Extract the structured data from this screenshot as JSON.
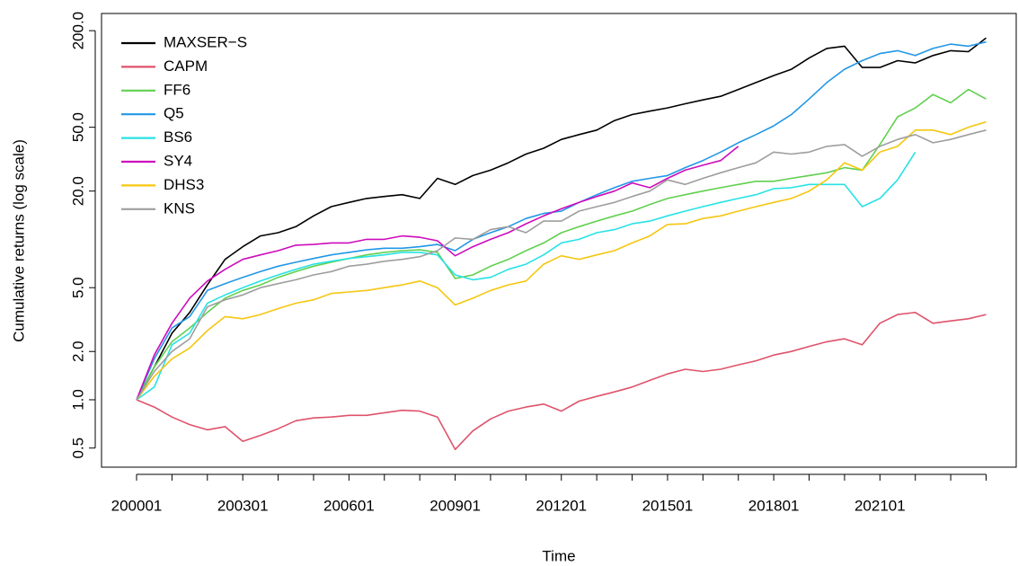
{
  "chart_data": {
    "type": "line",
    "xlabel": "Time",
    "ylabel": "Cumulative returns (log scale)",
    "ylog": true,
    "legend": "top-left",
    "xlim": [
      1999.01,
      2024.85
    ],
    "ylim": [
      0.38,
      256
    ],
    "xticks": [
      {
        "value": 2000,
        "label": "200001"
      },
      {
        "value": 2001,
        "label": null
      },
      {
        "value": 2002,
        "label": null
      },
      {
        "value": 2003,
        "label": "200301"
      },
      {
        "value": 2004,
        "label": null
      },
      {
        "value": 2005,
        "label": null
      },
      {
        "value": 2006,
        "label": "200601"
      },
      {
        "value": 2007,
        "label": null
      },
      {
        "value": 2008,
        "label": null
      },
      {
        "value": 2009,
        "label": "200901"
      },
      {
        "value": 2010,
        "label": null
      },
      {
        "value": 2011,
        "label": null
      },
      {
        "value": 2012,
        "label": "201201"
      },
      {
        "value": 2013,
        "label": null
      },
      {
        "value": 2014,
        "label": null
      },
      {
        "value": 2015,
        "label": "201501"
      },
      {
        "value": 2016,
        "label": null
      },
      {
        "value": 2017,
        "label": null
      },
      {
        "value": 2018,
        "label": "201801"
      },
      {
        "value": 2019,
        "label": null
      },
      {
        "value": 2020,
        "label": null
      },
      {
        "value": 2021,
        "label": "202101"
      },
      {
        "value": 2022,
        "label": null
      },
      {
        "value": 2023,
        "label": null
      },
      {
        "value": 2024,
        "label": null
      }
    ],
    "yticks": [
      0.5,
      {
        "value": 1,
        "label": "1.0"
      },
      {
        "value": 2,
        "label": "2.0"
      },
      {
        "value": 5,
        "label": "5.0"
      },
      {
        "value": 20,
        "label": "20.0"
      },
      {
        "value": 50,
        "label": "50.0"
      },
      {
        "value": 200,
        "label": "200.0"
      }
    ],
    "x": [
      2000,
      2000.5,
      2001,
      2001.5,
      2002,
      2002.5,
      2003,
      2003.5,
      2004,
      2004.5,
      2005,
      2005.5,
      2006,
      2006.5,
      2007,
      2007.5,
      2008,
      2008.5,
      2009,
      2009.5,
      2010,
      2010.5,
      2011,
      2011.5,
      2012,
      2012.5,
      2013,
      2013.5,
      2014,
      2014.5,
      2015,
      2015.5,
      2016,
      2016.5,
      2017,
      2017.5,
      2018,
      2018.5,
      2019,
      2019.5,
      2020,
      2020.5,
      2021,
      2021.5,
      2022,
      2022.5,
      2023,
      2023.5,
      2024
    ],
    "series": [
      {
        "name": "MAXSER−S",
        "color": "#000000",
        "values": [
          1.0,
          1.6,
          2.6,
          3.5,
          5.2,
          7.5,
          9,
          10.5,
          11,
          12,
          14,
          16,
          17,
          18,
          18.5,
          19,
          18,
          24,
          22,
          25,
          27,
          30,
          34,
          37,
          42,
          45,
          48,
          55,
          60,
          63,
          66,
          70,
          74,
          78,
          86,
          95,
          105,
          115,
          135,
          155,
          160,
          118,
          118,
          130,
          126,
          140,
          150,
          148,
          180
        ]
      },
      {
        "name": "CAPM",
        "color": "#df536b",
        "values": [
          1.0,
          0.9,
          0.78,
          0.7,
          0.65,
          0.68,
          0.55,
          0.6,
          0.66,
          0.74,
          0.77,
          0.78,
          0.8,
          0.8,
          0.83,
          0.86,
          0.85,
          0.78,
          0.49,
          0.64,
          0.76,
          0.85,
          0.9,
          0.94,
          0.85,
          0.98,
          1.05,
          1.12,
          1.2,
          1.32,
          1.45,
          1.55,
          1.5,
          1.55,
          1.65,
          1.75,
          1.9,
          2.0,
          2.15,
          2.3,
          2.4,
          2.2,
          3.0,
          3.4,
          3.5,
          3.0,
          3.1,
          3.2,
          3.4
        ]
      },
      {
        "name": "FF6",
        "color": "#61d04f",
        "values": [
          1,
          1.6,
          2.3,
          2.8,
          3.5,
          4.3,
          4.8,
          5.2,
          5.8,
          6.3,
          6.8,
          7.2,
          7.6,
          8.0,
          8.3,
          8.5,
          8.6,
          8.3,
          5.7,
          6.0,
          6.8,
          7.5,
          8.5,
          9.5,
          11,
          12,
          13,
          14,
          15,
          16.5,
          18,
          19,
          20,
          21,
          22,
          23,
          23,
          24,
          25,
          26,
          28,
          27,
          39,
          58,
          66,
          80,
          71,
          86,
          75
        ]
      },
      {
        "name": "Q5",
        "color": "#2297e6",
        "values": [
          1,
          1.8,
          2.8,
          3.3,
          4.8,
          5.3,
          5.8,
          6.3,
          6.8,
          7.2,
          7.6,
          8.0,
          8.3,
          8.6,
          8.8,
          8.8,
          9.0,
          9.3,
          8.5,
          10,
          11,
          12,
          13.5,
          14.5,
          15,
          17,
          19,
          21,
          23,
          24,
          25,
          28,
          31,
          35,
          40,
          45,
          51,
          60,
          75,
          95,
          115,
          130,
          144,
          150,
          140,
          155,
          165,
          160,
          170
        ]
      },
      {
        "name": "BS6",
        "color": "#28e2e5",
        "values": [
          1,
          1.2,
          2.2,
          2.6,
          4.0,
          4.5,
          5.0,
          5.5,
          6.0,
          6.5,
          7.0,
          7.3,
          7.6,
          7.8,
          8.0,
          8.3,
          8.3,
          8.0,
          6.0,
          5.6,
          5.8,
          6.5,
          7.0,
          8.0,
          9.5,
          10,
          11,
          11.5,
          12.5,
          13,
          14,
          15,
          16,
          17,
          18,
          19,
          20.7,
          21,
          22,
          22,
          22,
          16,
          18,
          23.5,
          35,
          null,
          null,
          null,
          null
        ]
      },
      {
        "name": "SY4",
        "color": "#cd0bbc",
        "values": [
          1,
          1.9,
          3,
          4.3,
          5.5,
          6.5,
          7.5,
          8.0,
          8.5,
          9.2,
          9.3,
          9.5,
          9.5,
          10,
          10,
          10.5,
          10.3,
          9.8,
          7.9,
          9.0,
          10,
          11,
          12.5,
          14,
          15.5,
          17,
          18.5,
          20,
          22.5,
          21,
          24,
          27,
          29,
          31,
          38,
          null,
          null,
          null,
          null,
          null,
          null,
          null,
          null,
          null,
          null,
          null,
          null,
          null,
          null
        ]
      },
      {
        "name": "DHS3",
        "color": "#f5c710",
        "values": [
          1,
          1.4,
          1.8,
          2.1,
          2.7,
          3.3,
          3.2,
          3.4,
          3.7,
          4.0,
          4.2,
          4.6,
          4.7,
          4.8,
          5.0,
          5.2,
          5.5,
          5.0,
          3.9,
          4.3,
          4.8,
          5.2,
          5.5,
          7.0,
          7.9,
          7.5,
          8.0,
          8.5,
          9.5,
          10.5,
          12.4,
          12.5,
          13.5,
          14,
          15,
          16,
          17,
          18,
          20,
          23.5,
          30,
          27,
          35,
          38,
          48,
          48,
          45,
          50,
          54
        ]
      },
      {
        "name": "KNS",
        "color": "#9e9e9e",
        "values": [
          1,
          1.5,
          2.0,
          2.4,
          3.8,
          4.2,
          4.5,
          5.0,
          5.3,
          5.6,
          6.0,
          6.3,
          6.8,
          7.0,
          7.3,
          7.5,
          7.8,
          8.5,
          10.2,
          10,
          11.5,
          12,
          11,
          13,
          13,
          15,
          16,
          17,
          18.5,
          20,
          23.5,
          22,
          24,
          26,
          28,
          30,
          35,
          34,
          35,
          38,
          39,
          33,
          38,
          42,
          45,
          40,
          42,
          45,
          48
        ]
      }
    ]
  }
}
